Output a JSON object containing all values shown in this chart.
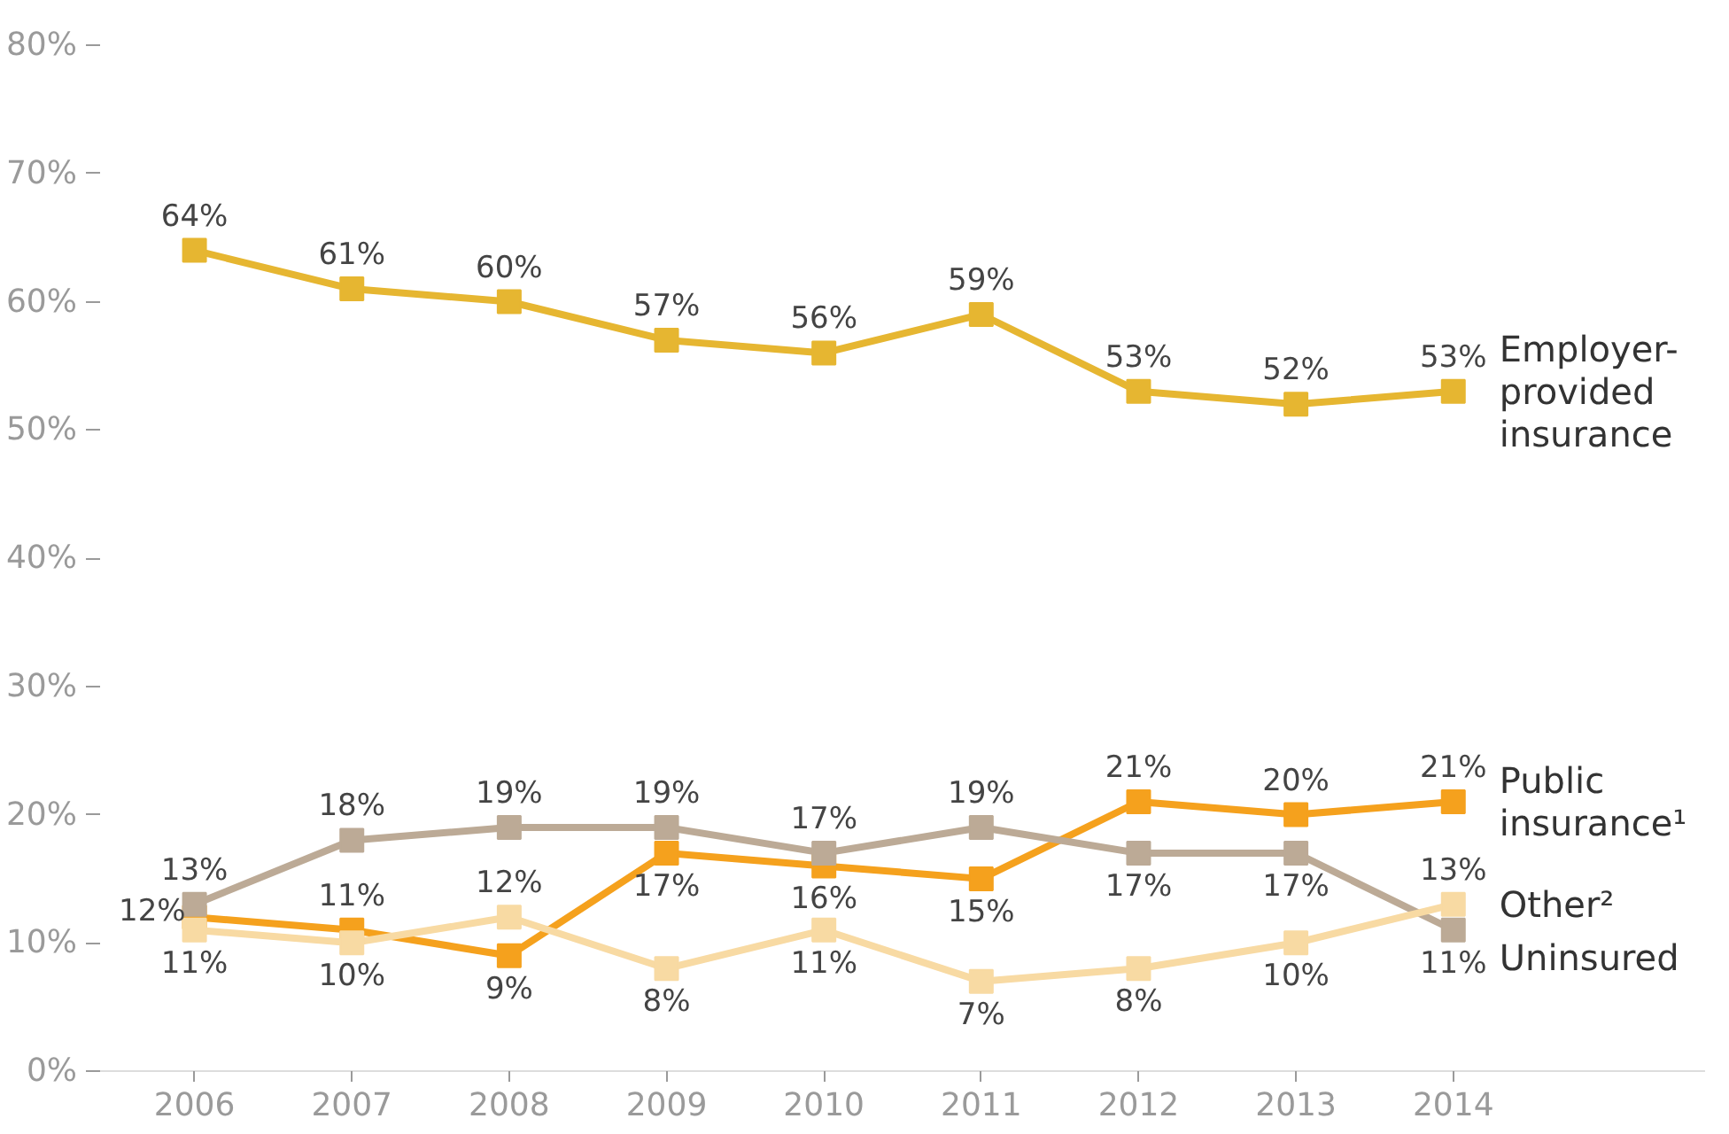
{
  "chart_data": {
    "type": "line",
    "x": [
      2006,
      2007,
      2008,
      2009,
      2010,
      2011,
      2012,
      2013,
      2014
    ],
    "xlim": [
      2005.4,
      2015.6
    ],
    "xticks": [
      2006,
      2007,
      2008,
      2009,
      2010,
      2011,
      2012,
      2013,
      2014
    ],
    "ylim": [
      0,
      80
    ],
    "yticks": [
      {
        "value": 0,
        "label": "0%"
      },
      {
        "value": 10,
        "label": "10%"
      },
      {
        "value": 20,
        "label": "20%"
      },
      {
        "value": 30,
        "label": "30%"
      },
      {
        "value": 40,
        "label": "40%"
      },
      {
        "value": 50,
        "label": "50%"
      },
      {
        "value": 60,
        "label": "60%"
      },
      {
        "value": 70,
        "label": "70%"
      },
      {
        "value": 80,
        "label": "80%"
      }
    ],
    "series": [
      {
        "name": "Employer-\nprovided\ninsurance",
        "color": "#e6b631",
        "values": [
          64,
          61,
          60,
          57,
          56,
          59,
          53,
          52,
          53
        ],
        "value_labels": [
          "64%",
          "61%",
          "60%",
          "57%",
          "56%",
          "59%",
          "53%",
          "52%",
          "53%"
        ]
      },
      {
        "name": "Public\ninsurance¹",
        "color": "#f5a11d",
        "values": [
          12,
          11,
          9,
          17,
          16,
          15,
          21,
          20,
          21
        ],
        "value_labels": [
          "12%",
          "11%",
          "9%",
          "17%",
          "16%",
          "15%",
          "21%",
          "20%",
          "21%"
        ]
      },
      {
        "name": "Uninsured",
        "color": "#bcaa96",
        "values": [
          13,
          18,
          19,
          19,
          17,
          19,
          17,
          17,
          11
        ],
        "value_labels": [
          "13%",
          "18%",
          "19%",
          "19%",
          "17%",
          "19%",
          "17%",
          "17%",
          "11%"
        ]
      },
      {
        "name": "Other²",
        "color": "#f8daa3",
        "values": [
          11,
          10,
          12,
          8,
          11,
          7,
          8,
          10,
          13
        ],
        "value_labels": [
          "11%",
          "10%",
          "12%",
          "8%",
          "11%",
          "7%",
          "8%",
          "10%",
          "13%"
        ]
      }
    ],
    "marker": "square",
    "line_style": "solid",
    "grid": false
  }
}
